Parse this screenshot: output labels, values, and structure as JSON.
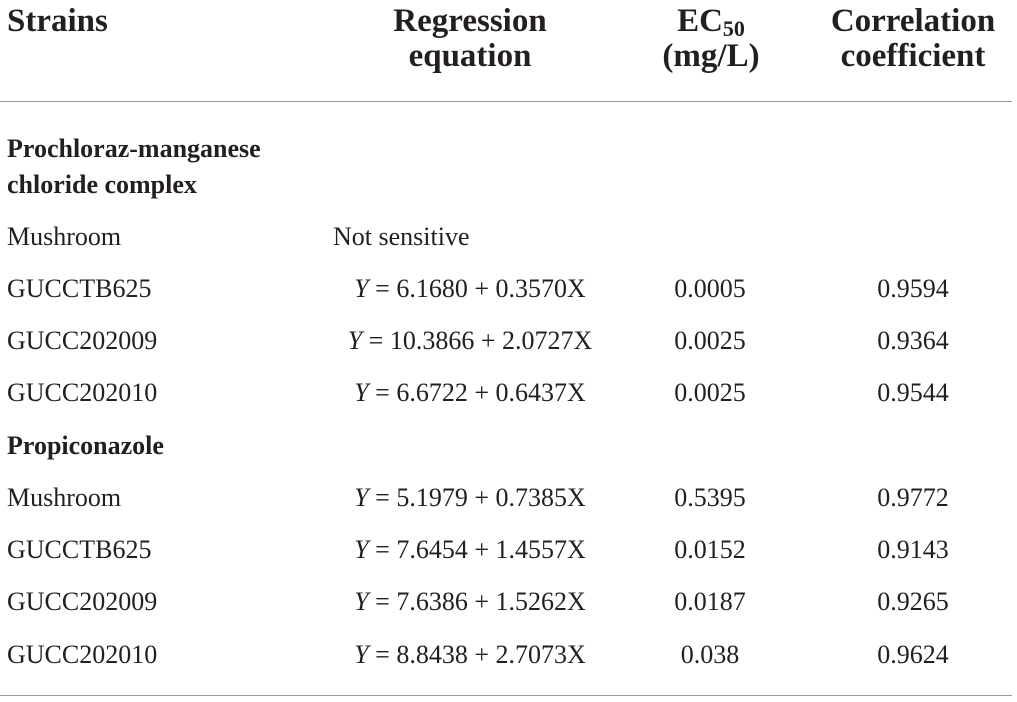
{
  "header": {
    "strains": "Strains",
    "regression_line1": "Regression",
    "regression_line2": "equation",
    "ec50_base": "EC",
    "ec50_sub": "50",
    "ec50_unit": "(mg/L)",
    "corr_line1": "Correlation",
    "corr_line2": "coefficient"
  },
  "sections": [
    {
      "title_line1": "Prochloraz-manganese",
      "title_line2": "chloride complex",
      "rows": [
        {
          "strain": "Mushroom",
          "equation": "Not sensitive",
          "ec50": "",
          "corr": ""
        },
        {
          "strain": "GUCCTB625",
          "equation_var": "Y",
          "equation_rest": " = 6.1680 + 0.3570X",
          "ec50": "0.0005",
          "corr": "0.9594"
        },
        {
          "strain": "GUCC202009",
          "equation_var": "Y",
          "equation_rest": " = 10.3866 + 2.0727X",
          "ec50": "0.0025",
          "corr": "0.9364"
        },
        {
          "strain": "GUCC202010",
          "equation_var": "Y",
          "equation_rest": " = 6.6722 + 0.6437X",
          "ec50": "0.0025",
          "corr": "0.9544"
        }
      ]
    },
    {
      "title_line1": "Propiconazole",
      "rows": [
        {
          "strain": "Mushroom",
          "equation_var": "Y",
          "equation_rest": " = 5.1979 + 0.7385X",
          "ec50": "0.5395",
          "corr": "0.9772"
        },
        {
          "strain": "GUCCTB625",
          "equation_var": "Y",
          "equation_rest": " = 7.6454 + 1.4557X",
          "ec50": "0.0152",
          "corr": "0.9143"
        },
        {
          "strain": "GUCC202009",
          "equation_var": "Y",
          "equation_rest": " = 7.6386 + 1.5262X",
          "ec50": "0.0187",
          "corr": "0.9265"
        },
        {
          "strain": "GUCC202010",
          "equation_var": "Y",
          "equation_rest": " = 8.8438 + 2.7073X",
          "ec50": "0.038",
          "corr": "0.9624"
        }
      ]
    }
  ]
}
